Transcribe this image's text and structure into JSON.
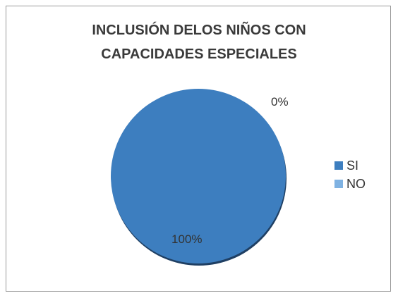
{
  "chart_data": {
    "type": "pie",
    "title": "INCLUSIÓN DELOS NIÑOS CON\nCAPACIDADES ESPECIALES",
    "categories": [
      "SI",
      "NO"
    ],
    "values": [
      100,
      0
    ],
    "value_labels": [
      "100%",
      "0%"
    ],
    "colors": [
      "#3d7ebf",
      "#7fb2e2"
    ],
    "legend_position": "right"
  }
}
